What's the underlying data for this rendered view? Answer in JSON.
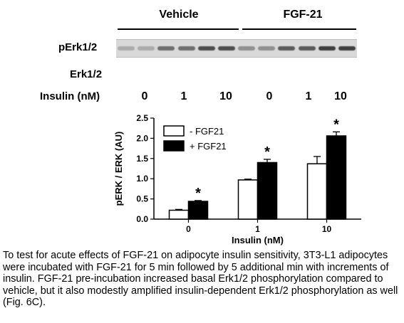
{
  "blot": {
    "group_vehicle": "Vehicle",
    "group_fgf21": "FGF-21",
    "row_perk": "pErk1/2",
    "row_erk": "Erk1/2",
    "insulin_label": "Insulin (nM)",
    "doses": [
      "0",
      "1",
      "10",
      "0",
      "1",
      "10"
    ],
    "band_intensity": [
      0.15,
      0.15,
      0.6,
      0.6,
      0.85,
      0.85,
      0.35,
      0.35,
      0.75,
      0.75,
      0.95,
      0.95
    ]
  },
  "chart_data": {
    "type": "bar",
    "categories": [
      "0",
      "1",
      "10"
    ],
    "series": [
      {
        "name": "- FGF21",
        "values": [
          0.22,
          0.97,
          1.37
        ],
        "errors": [
          0.02,
          0.02,
          0.18
        ],
        "color": "#ffffff"
      },
      {
        "name": "+ FGF21",
        "values": [
          0.44,
          1.4,
          2.06
        ],
        "errors": [
          0.02,
          0.08,
          0.1
        ],
        "color": "#000000"
      }
    ],
    "significance": [
      {
        "category": "0",
        "series": "+ FGF21",
        "marker": "*"
      },
      {
        "category": "1",
        "series": "+ FGF21",
        "marker": "*"
      },
      {
        "category": "10",
        "series": "+ FGF21",
        "marker": "*"
      }
    ],
    "xlabel": "Insulin (nM)",
    "ylabel": "pERK / ERK (AU)",
    "ylim": [
      0,
      2.5
    ],
    "yticks": [
      "0.0",
      "0.5",
      "1.0",
      "1.5",
      "2.0",
      "2.5"
    ],
    "legend_position": "top-left",
    "grid": false
  },
  "caption": "To test for acute effects of FGF-21 on adipocyte insulin sensitivity, 3T3-L1 adipocytes were incubated with FGF-21 for 5 min followed by 5 additional min with increments of insulin. FGF-21 pre-incubation increased basal Erk1/2 phosphorylation compared to vehicle, but it also modestly amplified insulin-dependent Erk1/2 phosphorylation as well (Fig. 6C)."
}
